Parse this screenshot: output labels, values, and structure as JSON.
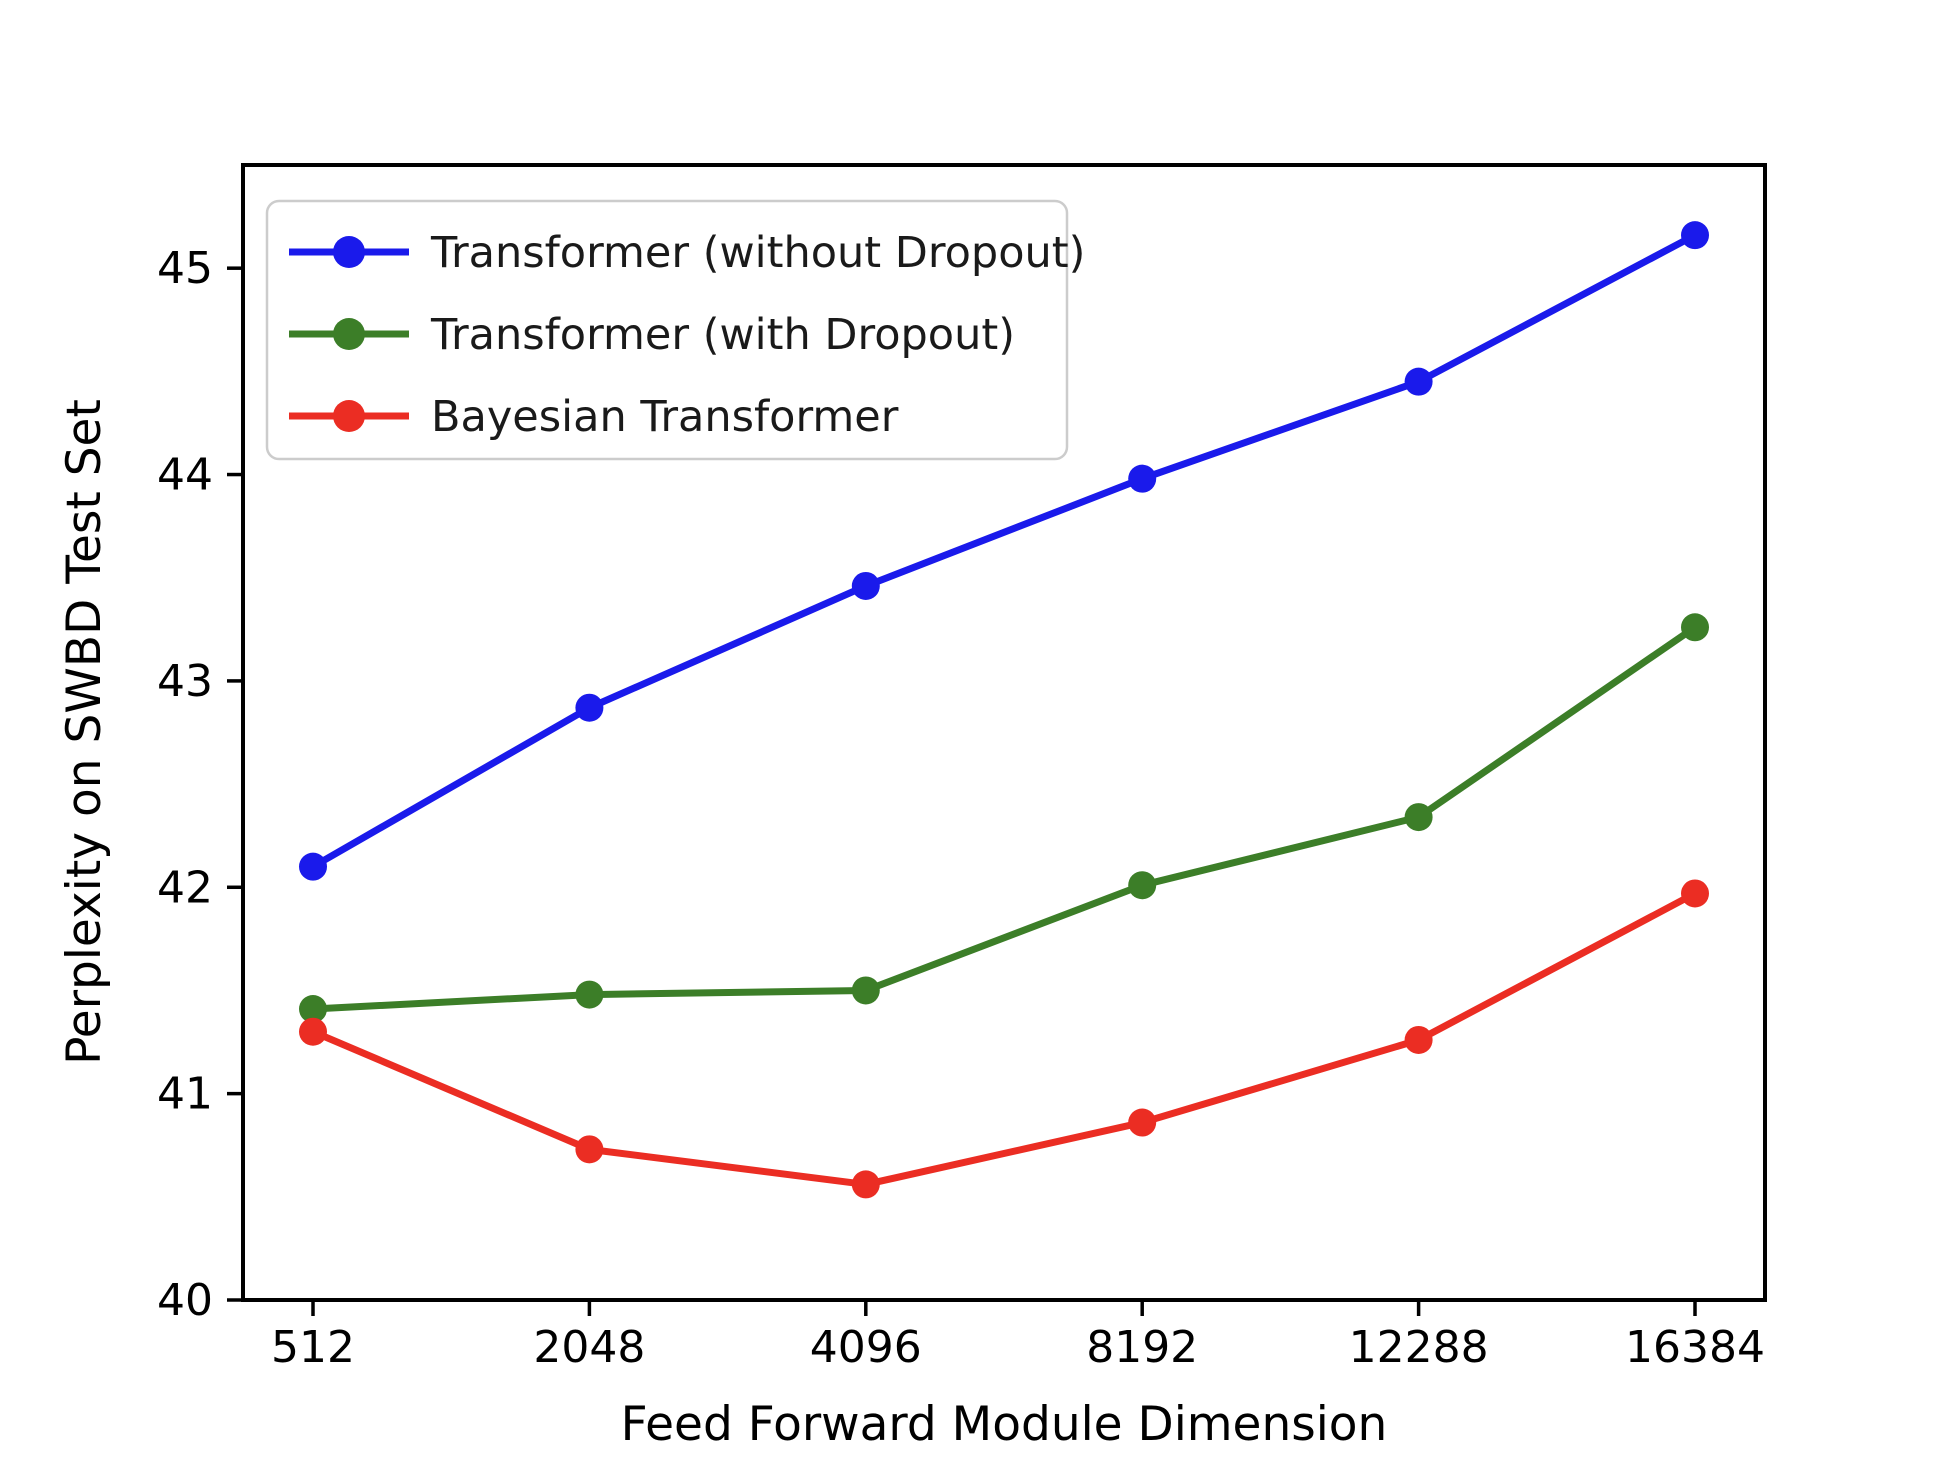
{
  "chart_data": {
    "type": "line",
    "title": "",
    "xlabel": "Feed Forward Module Dimension",
    "ylabel": "Perplexity on SWBD Test Set",
    "categories": [
      "512",
      "2048",
      "4096",
      "8192",
      "12288",
      "16384"
    ],
    "yticks": [
      40,
      41,
      42,
      43,
      44,
      45
    ],
    "ylim": [
      40,
      45.5
    ],
    "grid": false,
    "legend_position": "upper-left",
    "marker": "circle",
    "series": [
      {
        "name": "Transformer (without Dropout)",
        "color": "#1a1aeb",
        "values": [
          42.1,
          42.87,
          43.46,
          43.98,
          44.45,
          45.16
        ]
      },
      {
        "name": "Transformer (with Dropout)",
        "color": "#3c7e28",
        "values": [
          41.41,
          41.48,
          41.5,
          42.01,
          42.34,
          43.26
        ]
      },
      {
        "name": "Bayesian Transformer",
        "color": "#eb2d23",
        "values": [
          41.3,
          40.73,
          40.56,
          40.86,
          41.26,
          41.97
        ]
      }
    ],
    "frame_color": "#000000",
    "legend_border_color": "#cccccc",
    "legend_background": "#ffffff"
  }
}
